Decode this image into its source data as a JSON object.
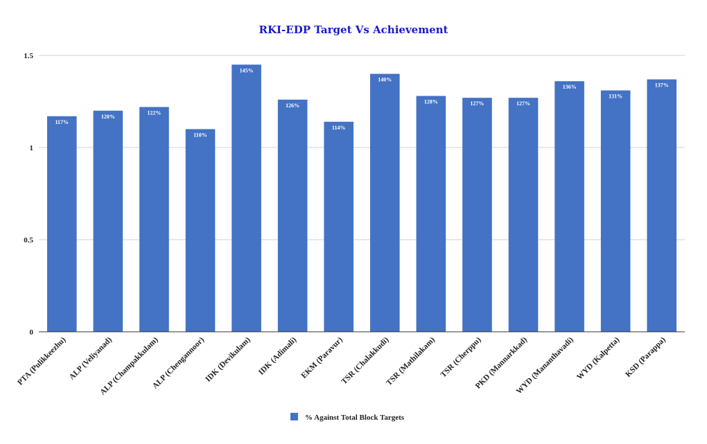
{
  "chart_data": {
    "type": "bar",
    "title": "RKI-EDP Target Vs Achievement",
    "xlabel": "",
    "ylabel": "",
    "ylim": [
      0,
      1.5
    ],
    "yticks": [
      0,
      0.5,
      1,
      1.5
    ],
    "ytick_labels": [
      "0",
      "0.5",
      "1",
      "1.5"
    ],
    "grid": true,
    "legend_position": "bottom",
    "bar_color": "#4472c4",
    "categories": [
      "PTA (Pulikkeezhu)",
      "ALP (Veliyanad)",
      "ALP (Champakkulam)",
      "ALP (Chengannoor)",
      "IDK (Devikulam)",
      "IDK (Adimali)",
      "EKM (Paravur)",
      "TSR (Chalakkudi)",
      "TSR (Mathilakam)",
      "TSR (Cherppu)",
      "PKD (Mannarkkad)",
      "WYD (Mananthavadi)",
      "WYD (Kalpetta)",
      "KSD (Parappa)"
    ],
    "series": [
      {
        "name": "% Against Total Block Targets",
        "values": [
          1.17,
          1.2,
          1.22,
          1.1,
          1.45,
          1.26,
          1.14,
          1.4,
          1.28,
          1.27,
          1.27,
          1.36,
          1.31,
          1.37
        ],
        "data_labels": [
          "117%",
          "120%",
          "122%",
          "110%",
          "145%",
          "126%",
          "114%",
          "140%",
          "128%",
          "127%",
          "127%",
          "136%",
          "131%",
          "137%"
        ]
      }
    ]
  }
}
